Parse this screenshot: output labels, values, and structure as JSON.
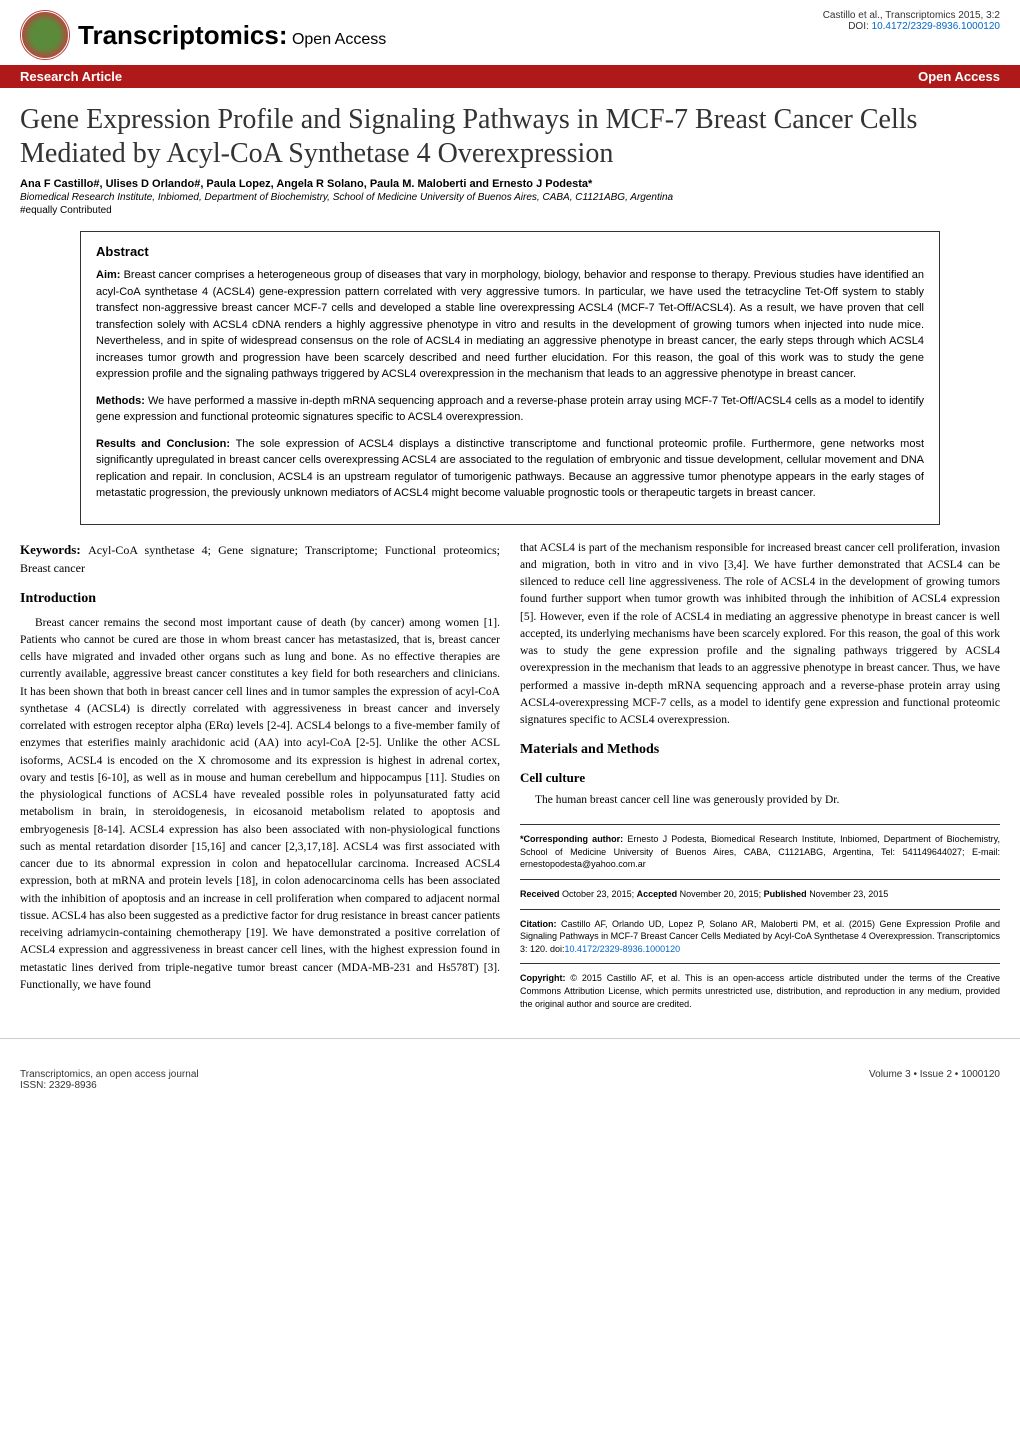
{
  "header": {
    "journal_title": "Transcriptomics:",
    "journal_subtitle": " Open Access",
    "citation": "Castillo et al., Transcriptomics 2015, 3:2",
    "doi_label": "DOI: ",
    "doi": "10.4172/2329-8936.1000120",
    "logo_text": "Transcriptomics: Open Access",
    "issn": "ISSN: 2329-8936"
  },
  "ribbon": {
    "left": "Research Article",
    "right": "Open Access"
  },
  "article": {
    "title": "Gene Expression Profile and Signaling Pathways in MCF-7 Breast Cancer Cells Mediated by Acyl-CoA Synthetase 4 Overexpression",
    "authors": "Ana F Castillo#, Ulises D Orlando#, Paula Lopez, Angela R Solano, Paula M. Maloberti and Ernesto J Podesta*",
    "affiliation": "Biomedical Research Institute, Inbiomed, Department of Biochemistry, School of Medicine University of Buenos Aires, CABA, C1121ABG, Argentina",
    "contrib": "#equally Contributed"
  },
  "abstract": {
    "heading": "Abstract",
    "aim_label": "Aim: ",
    "aim_text": "Breast cancer comprises a heterogeneous group of diseases that vary in morphology, biology, behavior and response to therapy. Previous studies have identified an acyl-CoA synthetase 4 (ACSL4) gene-expression pattern correlated with very aggressive tumors. In particular, we have used the tetracycline Tet-Off system to stably transfect non-aggressive breast cancer MCF-7 cells and developed a stable line overexpressing ACSL4 (MCF-7 Tet-Off/ACSL4). As a result, we have proven that cell transfection solely with ACSL4 cDNA renders a highly aggressive phenotype in vitro and results in the development of growing tumors when injected into nude mice. Nevertheless, and in spite of widespread consensus on the role of ACSL4 in mediating an aggressive phenotype in breast cancer, the early steps through which ACSL4 increases tumor growth and progression have been scarcely described and need further elucidation. For this reason, the goal of this work was to study the gene expression profile and the signaling pathways triggered by ACSL4 overexpression in the mechanism that leads to an aggressive phenotype in breast cancer.",
    "methods_label": "Methods: ",
    "methods_text": "We have performed a massive in-depth mRNA sequencing approach and a reverse-phase protein array using MCF-7 Tet-Off/ACSL4 cells as a model to identify gene expression and functional proteomic signatures specific to ACSL4 overexpression.",
    "results_label": "Results and Conclusion: ",
    "results_text": "The sole expression of ACSL4 displays a distinctive transcriptome and functional proteomic profile. Furthermore, gene networks most significantly upregulated in breast cancer cells overexpressing ACSL4 are associated to the regulation of embryonic and tissue development, cellular movement and DNA replication and repair. In conclusion, ACSL4 is an upstream regulator of tumorigenic pathways. Because an aggressive tumor phenotype appears in the early stages of metastatic progression, the previously unknown mediators of ACSL4 might become valuable prognostic tools or therapeutic targets in breast cancer."
  },
  "keywords": {
    "label": "Keywords: ",
    "text": "Acyl-CoA synthetase 4; Gene signature; Transcriptome; Functional proteomics; Breast cancer"
  },
  "sections": {
    "intro_heading": "Introduction",
    "intro_para": "Breast cancer remains the second most important cause of death (by cancer) among women [1]. Patients who cannot be cured are those in whom breast cancer has metastasized, that is, breast cancer cells have migrated and invaded other organs such as lung and bone. As no effective therapies are currently available, aggressive breast cancer constitutes a key field for both researchers and clinicians. It has been shown that both in breast cancer cell lines and in tumor samples the expression of acyl-CoA synthetase 4 (ACSL4) is directly correlated with aggressiveness in breast cancer and inversely correlated with estrogen receptor alpha (ERα) levels [2-4]. ACSL4 belongs to a five-member family of enzymes that esterifies mainly arachidonic acid (AA) into acyl-CoA [2-5]. Unlike the other ACSL isoforms, ACSL4 is encoded on the X chromosome and its expression is highest in adrenal cortex, ovary and testis [6-10], as well as in mouse and human cerebellum and hippocampus [11]. Studies on the physiological functions of ACSL4 have revealed possible roles in polyunsaturated fatty acid metabolism in brain, in steroidogenesis, in eicosanoid metabolism related to apoptosis and embryogenesis [8-14]. ACSL4 expression has also been associated with non-physiological functions such as mental retardation disorder [15,16] and cancer [2,3,17,18]. ACSL4 was first associated with cancer due to its abnormal expression in colon and hepatocellular carcinoma. Increased ACSL4 expression, both at mRNA and protein levels [18], in colon adenocarcinoma cells has been associated with the inhibition of apoptosis and an increase in cell proliferation when compared to adjacent normal tissue. ACSL4 has also been suggested as a predictive factor for drug resistance in breast cancer patients receiving adriamycin-containing chemotherapy [19]. We have demonstrated a positive correlation of ACSL4 expression and aggressiveness in breast cancer cell lines, with the highest expression found in metastatic lines derived from triple-negative tumor breast cancer (MDA-MB-231 and Hs578T) [3]. Functionally, we have found",
    "col2_para": "that ACSL4 is part of the mechanism responsible for increased breast cancer cell proliferation, invasion and migration, both in vitro and in vivo [3,4]. We have further demonstrated that ACSL4 can be silenced to reduce cell line aggressiveness. The role of ACSL4 in the development of growing tumors found further support when tumor growth was inhibited through the inhibition of ACSL4 expression [5]. However, even if the role of ACSL4 in mediating an aggressive phenotype in breast cancer is well accepted, its underlying mechanisms have been scarcely explored. For this reason, the goal of this work was to study the gene expression profile and the signaling pathways triggered by ACSL4 overexpression in the mechanism that leads to an aggressive phenotype in breast cancer. Thus, we have performed a massive in-depth mRNA sequencing approach and a reverse-phase protein array using ACSL4-overexpressing MCF-7 cells, as a model to identify gene expression and functional proteomic signatures specific to ACSL4 overexpression.",
    "materials_heading": "Materials and Methods",
    "cell_heading": "Cell culture",
    "cell_para": "The human breast cancer cell line was generously provided by Dr."
  },
  "infobox": {
    "corr_label": "*Corresponding author: ",
    "corr_text": "Ernesto J Podesta, Biomedical Research Institute, Inbiomed, Department of Biochemistry, School of Medicine University of Buenos Aires, CABA, C1121ABG, Argentina, Tel: 541149644027; E-mail: ernestopodesta@yahoo.com.ar",
    "received_label": "Received ",
    "received_text": "October 23, 2015; ",
    "accepted_label": "Accepted ",
    "accepted_text": "November 20, 2015; ",
    "published_label": "Published ",
    "published_text": "November 23, 2015",
    "citation_label": "Citation: ",
    "citation_text": "Castillo AF, Orlando UD, Lopez P, Solano AR, Maloberti PM, et al. (2015) Gene Expression Profile and Signaling Pathways in MCF-7 Breast Cancer Cells Mediated by Acyl-CoA Synthetase 4 Overexpression. Transcriptomics 3: 120. doi:",
    "citation_doi": "10.4172/2329-8936.1000120",
    "copyright_label": "Copyright: ",
    "copyright_text": "© 2015 Castillo AF, et al. This is an open-access article distributed under the terms of the Creative Commons Attribution License, which permits unrestricted use, distribution, and reproduction in any medium, provided the original author and source are credited."
  },
  "footer": {
    "left_line1": "Transcriptomics, an open access journal",
    "left_line2": "ISSN: 2329-8936",
    "right": "Volume 3 • Issue 2 • 1000120"
  },
  "colors": {
    "ribbon_bg": "#b01919",
    "ribbon_text": "#ffffff",
    "doi_link": "#0066cc",
    "body_text": "#000000",
    "title_text": "#333333"
  },
  "typography": {
    "article_title_fontsize": 28,
    "section_heading_fontsize": 14,
    "body_fontsize": 11.5,
    "abstract_fontsize": 11,
    "footer_fontsize": 10,
    "infobox_fontsize": 9
  }
}
